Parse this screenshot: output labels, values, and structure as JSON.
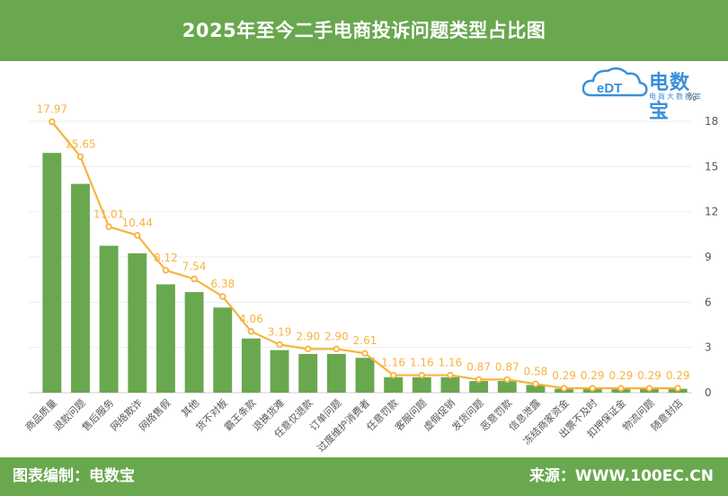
{
  "header": {
    "title": "2025年至今二手电商投诉问题类型占比图"
  },
  "footer": {
    "left": "图表编制：电数宝",
    "right": "来源：WWW.100EC.CN"
  },
  "logo": {
    "text": "电数宝",
    "subtitle": "电商大数据库",
    "mark": "eDT",
    "icon": "cloud-logo-icon"
  },
  "colors": {
    "header_bg": "#69a84f",
    "bar": "#69a84f",
    "line": "#f7b340",
    "label": "#f7b340",
    "logo": "#3a8fd8"
  },
  "chart_data": {
    "type": "bar",
    "overlay": "line",
    "unit_label": "%",
    "ylim": [
      0,
      18
    ],
    "yticks": [
      0,
      3,
      6,
      9,
      12,
      15,
      18
    ],
    "yaxis_position": "right",
    "grid": true,
    "categories": [
      "商品质量",
      "退款问题",
      "售后服务",
      "网络欺诈",
      "网络售假",
      "其他",
      "货不对板",
      "霸王条款",
      "退换货难",
      "任意仅退款",
      "订单问题",
      "过度维护消费者",
      "任意罚款",
      "客服问题",
      "虚假促销",
      "发货问题",
      "恶意罚款",
      "信息泄露",
      "冻结商家资金",
      "出票不及时",
      "扣押保证金",
      "物流问题",
      "随意封店"
    ],
    "values": [
      17.97,
      15.65,
      11.01,
      10.44,
      8.12,
      7.54,
      6.38,
      4.06,
      3.19,
      2.9,
      2.9,
      2.61,
      1.16,
      1.16,
      1.16,
      0.87,
      0.87,
      0.58,
      0.29,
      0.29,
      0.29,
      0.29,
      0.29
    ],
    "labels": [
      "17.97",
      "15.65",
      "11.01",
      "10.44",
      "8.12",
      "7.54",
      "6.38",
      "4.06",
      "3.19",
      "2.90",
      "2.90",
      "2.61",
      "1.16",
      "1.16",
      "1.16",
      "0.87",
      "0.87",
      "0.58",
      "0.29",
      "0.29",
      "0.29",
      "0.29",
      "0.29"
    ]
  }
}
